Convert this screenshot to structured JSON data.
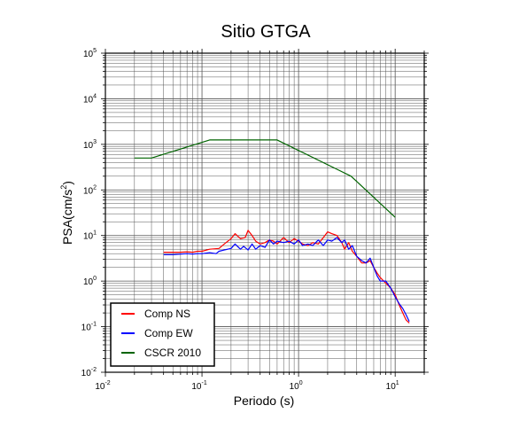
{
  "chart_data": {
    "type": "line",
    "title": "Sitio GTGA",
    "xlabel": "Periodo (s)",
    "ylabel_base": "PSA(cm/s",
    "ylabel_sup": "2",
    "ylabel_end": ")",
    "x_scale": "log",
    "y_scale": "log",
    "xlim": [
      0.01,
      20
    ],
    "ylim": [
      0.01,
      100000
    ],
    "grid": true,
    "legend_position": "bottom-left",
    "x_ticks": [
      {
        "base": "10",
        "exp": "-2",
        "value": 0.01
      },
      {
        "base": "10",
        "exp": "-1",
        "value": 0.1
      },
      {
        "base": "10",
        "exp": "0",
        "value": 1
      },
      {
        "base": "10",
        "exp": "1",
        "value": 10
      }
    ],
    "y_ticks": [
      {
        "base": "10",
        "exp": "-2",
        "value": 0.01
      },
      {
        "base": "10",
        "exp": "-1",
        "value": 0.1
      },
      {
        "base": "10",
        "exp": "0",
        "value": 1
      },
      {
        "base": "10",
        "exp": "1",
        "value": 10
      },
      {
        "base": "10",
        "exp": "2",
        "value": 100
      },
      {
        "base": "10",
        "exp": "3",
        "value": 1000
      },
      {
        "base": "10",
        "exp": "4",
        "value": 10000
      },
      {
        "base": "10",
        "exp": "5",
        "value": 100000
      }
    ],
    "series": [
      {
        "name": "Comp NS",
        "color": "#ff0000",
        "x": [
          0.04,
          0.05,
          0.06,
          0.07,
          0.08,
          0.09,
          0.1,
          0.12,
          0.15,
          0.17,
          0.2,
          0.22,
          0.25,
          0.28,
          0.3,
          0.33,
          0.36,
          0.4,
          0.45,
          0.5,
          0.55,
          0.6,
          0.7,
          0.8,
          0.9,
          1.0,
          1.1,
          1.25,
          1.4,
          1.6,
          1.8,
          2.0,
          2.2,
          2.5,
          2.8,
          3.0,
          3.3,
          3.6,
          4.0,
          4.5,
          5.0,
          5.5,
          6.0,
          6.5,
          7.0,
          8.0,
          9.0,
          10.0,
          11.0,
          12.0,
          13.0,
          14.0
        ],
        "y": [
          4.3,
          4.3,
          4.3,
          4.4,
          4.3,
          4.5,
          4.5,
          5.0,
          5.2,
          6.5,
          8.5,
          11.0,
          8.5,
          9.0,
          13.0,
          10.0,
          7.5,
          6.5,
          7.0,
          8.0,
          7.5,
          6.5,
          9.0,
          7.0,
          8.5,
          7.5,
          6.5,
          6.0,
          7.0,
          6.5,
          9.0,
          12.0,
          11.0,
          10.0,
          7.0,
          5.0,
          7.0,
          4.5,
          3.5,
          2.5,
          2.5,
          2.8,
          2.0,
          1.5,
          1.2,
          0.9,
          0.7,
          0.5,
          0.3,
          0.2,
          0.14,
          0.12
        ]
      },
      {
        "name": "Comp EW",
        "color": "#0000ff",
        "x": [
          0.04,
          0.05,
          0.06,
          0.07,
          0.08,
          0.09,
          0.1,
          0.12,
          0.14,
          0.15,
          0.17,
          0.2,
          0.22,
          0.25,
          0.27,
          0.3,
          0.33,
          0.36,
          0.4,
          0.45,
          0.5,
          0.55,
          0.6,
          0.7,
          0.8,
          0.9,
          1.0,
          1.1,
          1.25,
          1.4,
          1.6,
          1.8,
          2.0,
          2.2,
          2.5,
          2.8,
          3.0,
          3.3,
          3.6,
          4.0,
          4.5,
          5.0,
          5.5,
          6.0,
          6.5,
          7.0,
          8.0,
          9.0,
          10.0,
          11.0,
          12.0,
          13.0,
          14.0
        ],
        "y": [
          3.8,
          3.8,
          3.9,
          4.0,
          3.9,
          4.0,
          4.0,
          4.2,
          4.0,
          4.5,
          4.8,
          5.2,
          6.5,
          5.0,
          5.8,
          4.8,
          6.5,
          5.0,
          6.0,
          5.5,
          8.0,
          6.5,
          7.5,
          7.0,
          7.5,
          6.5,
          8.0,
          6.0,
          6.5,
          6.0,
          8.0,
          6.0,
          8.0,
          7.5,
          9.0,
          7.0,
          8.0,
          5.0,
          6.0,
          3.5,
          2.8,
          2.5,
          3.2,
          2.0,
          1.3,
          1.0,
          1.0,
          0.7,
          0.45,
          0.32,
          0.25,
          0.18,
          0.13
        ]
      },
      {
        "name": "CSCR 2010",
        "color": "#006400",
        "x": [
          0.02,
          0.03,
          0.12,
          0.6,
          3.5,
          10.0
        ],
        "y": [
          500,
          500,
          1250,
          1250,
          200,
          25
        ]
      }
    ]
  }
}
